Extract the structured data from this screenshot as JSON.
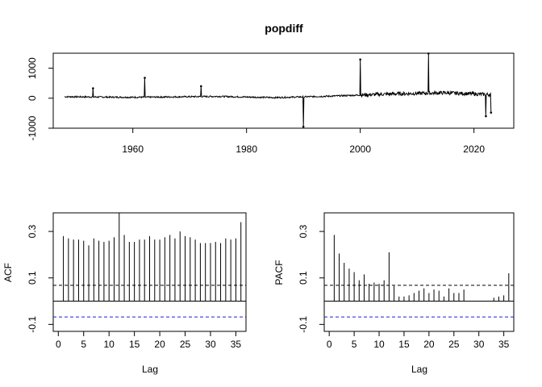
{
  "chart_data": [
    {
      "type": "line",
      "title": "popdiff",
      "xlabel": "",
      "ylabel": "",
      "xlim": [
        1946,
        2027
      ],
      "ylim": [
        -1000,
        1500
      ],
      "xticks": [
        1960,
        1980,
        2000,
        2020
      ],
      "xtick_labels": [
        "1960",
        "1980",
        "2000",
        "2020"
      ],
      "yticks": [
        -1000,
        0,
        1000
      ],
      "ytick_labels": [
        "-1000",
        "0",
        "1000"
      ],
      "spikes": [
        {
          "x": 1953.0,
          "y": 330
        },
        {
          "x": 1962.1,
          "y": 680
        },
        {
          "x": 1972.0,
          "y": 400
        },
        {
          "x": 1990.0,
          "y": -950
        },
        {
          "x": 2000.0,
          "y": 1290
        },
        {
          "x": 2012.0,
          "y": 1490
        },
        {
          "x": 2022.1,
          "y": -600
        },
        {
          "x": 2023.0,
          "y": -480
        }
      ],
      "baseline": [
        {
          "x": 1948,
          "y": 50
        },
        {
          "x": 1960,
          "y": 30
        },
        {
          "x": 1975,
          "y": 60
        },
        {
          "x": 1985,
          "y": 20
        },
        {
          "x": 1995,
          "y": 70
        },
        {
          "x": 2005,
          "y": 140
        },
        {
          "x": 2015,
          "y": 180
        },
        {
          "x": 2023,
          "y": 120
        }
      ]
    },
    {
      "type": "bar",
      "ylabel": "ACF",
      "xlabel": "Lag",
      "xlim": [
        -1,
        37
      ],
      "ylim": [
        -0.13,
        0.38
      ],
      "xticks": [
        0,
        5,
        10,
        15,
        20,
        25,
        30,
        35
      ],
      "xtick_labels": [
        "0",
        "5",
        "10",
        "15",
        "20",
        "25",
        "30",
        "35"
      ],
      "yticks": [
        -0.1,
        0.1,
        0.3
      ],
      "ytick_labels": [
        "-0.1",
        "0.1",
        "0.3"
      ],
      "ci": 0.068,
      "lags": [
        1,
        2,
        3,
        4,
        5,
        6,
        7,
        8,
        9,
        10,
        11,
        12,
        13,
        14,
        15,
        16,
        17,
        18,
        19,
        20,
        21,
        22,
        23,
        24,
        25,
        26,
        27,
        28,
        29,
        30,
        31,
        32,
        33,
        34,
        35,
        36
      ],
      "values": [
        0.28,
        0.27,
        0.265,
        0.265,
        0.26,
        0.24,
        0.27,
        0.26,
        0.255,
        0.26,
        0.275,
        0.38,
        0.285,
        0.255,
        0.255,
        0.265,
        0.265,
        0.28,
        0.265,
        0.265,
        0.275,
        0.285,
        0.27,
        0.3,
        0.28,
        0.275,
        0.265,
        0.25,
        0.25,
        0.25,
        0.255,
        0.25,
        0.27,
        0.265,
        0.27,
        0.34
      ]
    },
    {
      "type": "bar",
      "ylabel": "PACF",
      "xlabel": "Lag",
      "xlim": [
        -1,
        37
      ],
      "ylim": [
        -0.13,
        0.38
      ],
      "xticks": [
        0,
        5,
        10,
        15,
        20,
        25,
        30,
        35
      ],
      "xtick_labels": [
        "0",
        "5",
        "10",
        "15",
        "20",
        "25",
        "30",
        "35"
      ],
      "yticks": [
        -0.1,
        0.1,
        0.3
      ],
      "ytick_labels": [
        "-0.1",
        "0.1",
        "0.3"
      ],
      "ci": 0.068,
      "lags": [
        1,
        2,
        3,
        4,
        5,
        6,
        7,
        8,
        9,
        10,
        11,
        12,
        13,
        14,
        15,
        16,
        17,
        18,
        19,
        20,
        21,
        22,
        23,
        24,
        25,
        26,
        27,
        28,
        29,
        30,
        31,
        32,
        33,
        34,
        35,
        36
      ],
      "values": [
        0.285,
        0.205,
        0.165,
        0.14,
        0.125,
        0.09,
        0.115,
        0.075,
        0.08,
        0.075,
        0.09,
        0.21,
        0.065,
        0.02,
        0.02,
        0.025,
        0.035,
        0.045,
        0.055,
        0.035,
        0.05,
        0.045,
        0.02,
        0.055,
        0.035,
        0.035,
        0.05,
        0.0,
        0.0,
        0.0,
        0.0,
        0.0,
        0.015,
        0.02,
        0.025,
        0.12
      ]
    }
  ]
}
